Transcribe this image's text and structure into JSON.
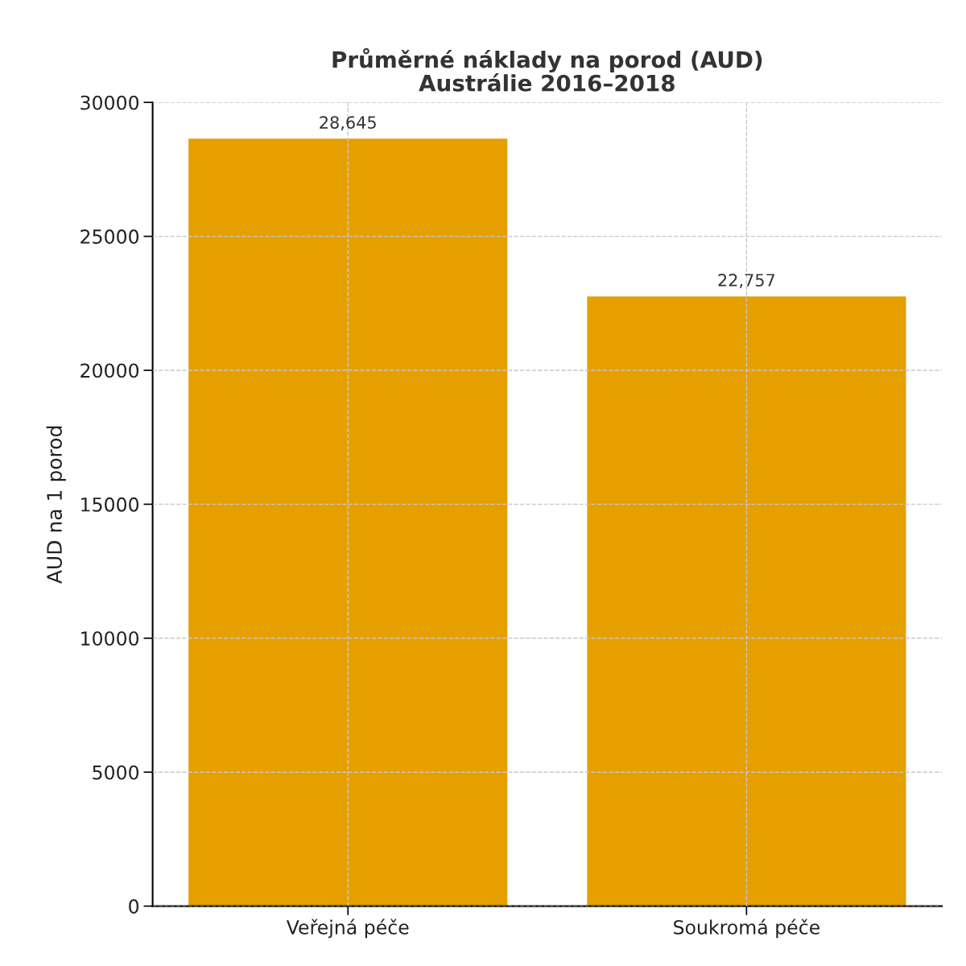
{
  "chart_data": {
    "type": "bar",
    "title": "Průměrné náklady na porod (AUD)\nAustrálie 2016–2018",
    "ylabel": "AUD na 1 porod",
    "categories": [
      "Veřejná péče",
      "Soukromá péče"
    ],
    "values": [
      28645,
      22757
    ],
    "value_labels": [
      "28,645",
      "22,757"
    ],
    "color": "#e5a000",
    "ylim": [
      0,
      30000
    ],
    "yticks": [
      0,
      5000,
      10000,
      15000,
      20000,
      25000,
      30000
    ],
    "grid": true,
    "line_style": "dashed"
  }
}
